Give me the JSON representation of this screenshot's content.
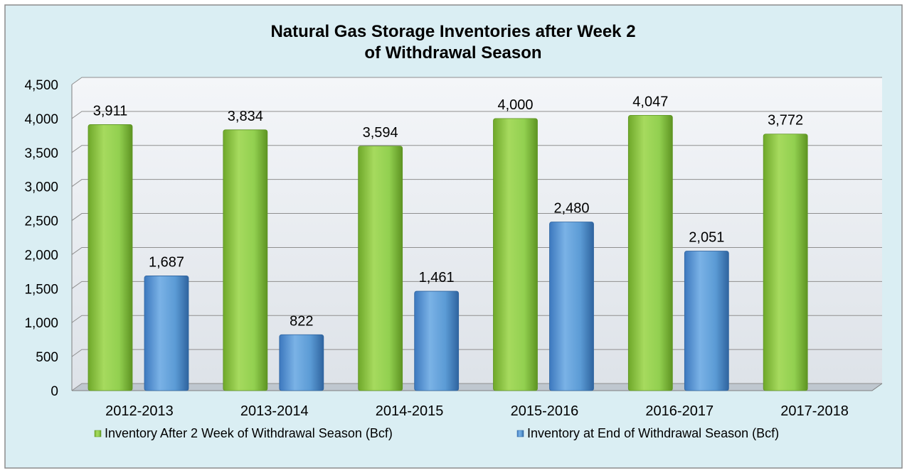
{
  "chart_data": {
    "type": "bar",
    "title_lines": [
      "Natural Gas Storage Inventories after Week 2",
      "of Withdrawal Season"
    ],
    "categories": [
      "2012-2013",
      "2013-2014",
      "2014-2015",
      "2015-2016",
      "2016-2017",
      "2017-2018"
    ],
    "series": [
      {
        "name": "Inventory After 2 Week of Withdrawal Season (Bcf)",
        "color": "#92D050",
        "values": [
          3911,
          3834,
          3594,
          4000,
          4047,
          3772
        ],
        "labels": [
          "3,911",
          "3,834",
          "3,594",
          "4,000",
          "4,047",
          "3,772"
        ]
      },
      {
        "name": "Inventory at End of Withdrawal Season (Bcf)",
        "color": "#5B9BD5",
        "values": [
          1687,
          822,
          1461,
          2480,
          2051,
          null
        ],
        "labels": [
          "1,687",
          "822",
          "1,461",
          "2,480",
          "2,051",
          ""
        ]
      }
    ],
    "y_ticks": [
      0,
      500,
      1000,
      1500,
      2000,
      2500,
      3000,
      3500,
      4000,
      4500
    ],
    "y_tick_labels": [
      "0",
      "500",
      "1,000",
      "1,500",
      "2,000",
      "2,500",
      "3,000",
      "3,500",
      "4,000",
      "4,500"
    ],
    "ylim": [
      0,
      4500
    ],
    "grid": true,
    "legend_position": "bottom",
    "background_color": "#DAEEF3",
    "plot_wall_color": "#EEF3F8"
  }
}
